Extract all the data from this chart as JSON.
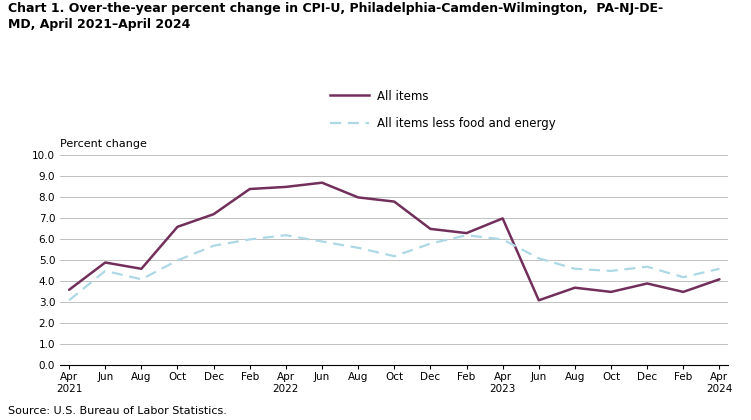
{
  "title": "Chart 1. Over-the-year percent change in CPI-U, Philadelphia-Camden-Wilmington,  PA-NJ-DE-\nMD, April 2021–April 2024",
  "ylabel": "Percent change",
  "source": "Source: U.S. Bureau of Labor Statistics.",
  "ylim": [
    0.0,
    10.0
  ],
  "yticks": [
    0.0,
    1.0,
    2.0,
    3.0,
    4.0,
    5.0,
    6.0,
    7.0,
    8.0,
    9.0,
    10.0
  ],
  "x_labels": [
    "Apr\n2021",
    "Jun",
    "Aug",
    "Oct",
    "Dec",
    "Feb",
    "Apr\n2022",
    "Jun",
    "Aug",
    "Oct",
    "Dec",
    "Feb",
    "Apr\n2023",
    "Jun",
    "Aug",
    "Oct",
    "Dec",
    "Feb",
    "Apr\n2024"
  ],
  "x_positions": [
    0,
    2,
    4,
    6,
    8,
    10,
    12,
    14,
    16,
    18,
    20,
    22,
    24,
    26,
    28,
    30,
    32,
    34,
    36
  ],
  "all_items": [
    3.6,
    4.9,
    4.6,
    6.6,
    7.2,
    8.4,
    8.5,
    8.7,
    8.0,
    7.8,
    6.5,
    6.3,
    7.0,
    3.1,
    3.7,
    3.5,
    3.9,
    3.5,
    4.1
  ],
  "all_items_less": [
    3.1,
    4.5,
    4.1,
    5.0,
    5.7,
    6.0,
    6.2,
    5.9,
    5.6,
    5.2,
    5.8,
    6.2,
    6.0,
    5.1,
    4.6,
    4.5,
    4.7,
    4.2,
    4.6
  ],
  "all_items_color": "#722F5B",
  "all_items_less_color": "#ADD8E6",
  "legend_labels": [
    "All items",
    "All items less food and energy"
  ],
  "background_color": "#ffffff",
  "grid_color": "#c0c0c0"
}
